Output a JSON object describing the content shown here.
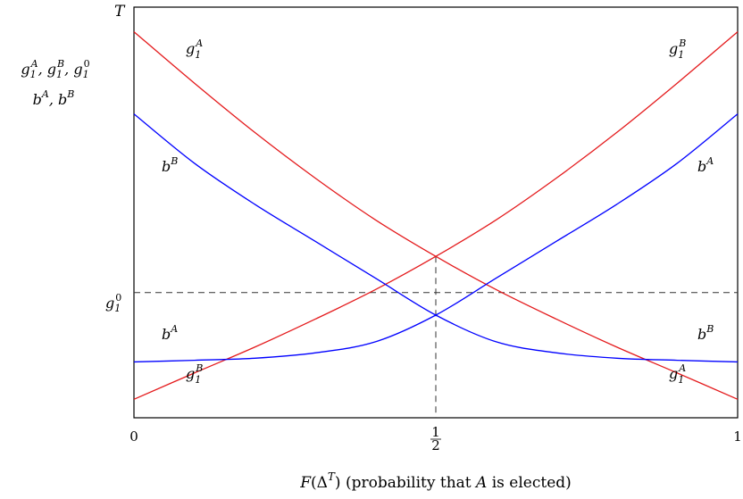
{
  "chart_data": {
    "type": "line",
    "xlabel": "F(Δ^T) (probability that A is elected)",
    "ylabel_lines": [
      "g1A, g1B, g10",
      "bA, bB"
    ],
    "y_top_label": "T",
    "xlim": [
      0,
      1
    ],
    "x_ticks": [
      {
        "value": 0,
        "label": "0"
      },
      {
        "value": 0.5,
        "label": "1/2"
      },
      {
        "value": 1,
        "label": "1"
      }
    ],
    "y_ticks": [
      {
        "name": "g10",
        "label": "g1^0",
        "value": 0.305
      }
    ],
    "grid": false,
    "series": [
      {
        "name": "g1A",
        "color": "#e41a1c",
        "x": [
          0,
          0.1,
          0.2,
          0.3,
          0.4,
          0.5,
          0.6,
          0.7,
          0.8,
          0.9,
          1
        ],
        "y": [
          0.94,
          0.815,
          0.695,
          0.584,
          0.482,
          0.393,
          0.312,
          0.24,
          0.172,
          0.109,
          0.045
        ]
      },
      {
        "name": "g1B",
        "color": "#e41a1c",
        "x": [
          0,
          0.1,
          0.2,
          0.3,
          0.4,
          0.5,
          0.6,
          0.7,
          0.8,
          0.9,
          1
        ],
        "y": [
          0.045,
          0.109,
          0.172,
          0.24,
          0.312,
          0.393,
          0.482,
          0.584,
          0.695,
          0.815,
          0.94
        ]
      },
      {
        "name": "bB",
        "color": "#0000ff",
        "x": [
          0,
          0.1,
          0.2,
          0.3,
          0.4,
          0.5,
          0.6,
          0.7,
          0.8,
          0.9,
          1
        ],
        "y": [
          0.74,
          0.62,
          0.52,
          0.43,
          0.34,
          0.25,
          0.185,
          0.158,
          0.145,
          0.14,
          0.136
        ]
      },
      {
        "name": "bA",
        "color": "#0000ff",
        "x": [
          0,
          0.1,
          0.2,
          0.3,
          0.4,
          0.5,
          0.6,
          0.7,
          0.8,
          0.9,
          1
        ],
        "y": [
          0.136,
          0.14,
          0.145,
          0.158,
          0.185,
          0.25,
          0.34,
          0.43,
          0.52,
          0.62,
          0.74
        ]
      }
    ],
    "reference_lines": [
      {
        "orientation": "horizontal",
        "name": "g10",
        "value": 0.305,
        "style": "dashed"
      },
      {
        "orientation": "vertical",
        "value": 0.5,
        "style": "dashed",
        "to_y": 0.393
      }
    ],
    "curve_labels": [
      {
        "series": "g1A",
        "text": "g1^A",
        "position": "top-left"
      },
      {
        "series": "g1B",
        "text": "g1^B",
        "position": "top-right"
      },
      {
        "series": "bB",
        "text": "b^B",
        "position": "upper-left"
      },
      {
        "series": "bA",
        "text": "b^A",
        "position": "upper-right"
      },
      {
        "series": "bA",
        "text": "b^A",
        "position": "lower-left"
      },
      {
        "series": "bB",
        "text": "b^B",
        "position": "lower-right"
      },
      {
        "series": "g1B",
        "text": "g1^B",
        "position": "bottom-left"
      },
      {
        "series": "g1A",
        "text": "g1^A",
        "position": "bottom-right"
      }
    ]
  }
}
